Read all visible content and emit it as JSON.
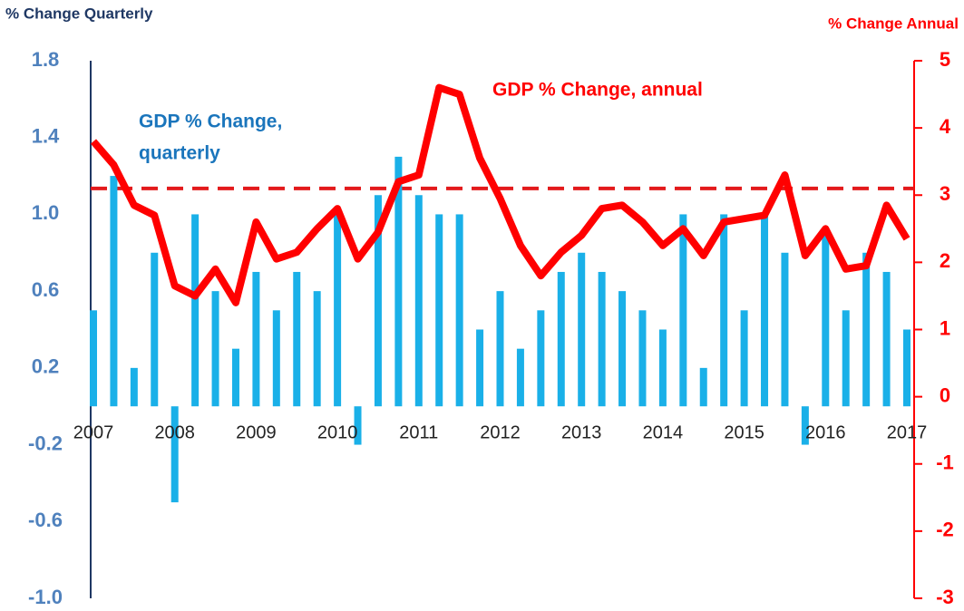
{
  "chart_data": {
    "type": "bar",
    "y_axis_title": "% Change Quarterly",
    "y2_axis_title": "% Change Annual",
    "annotations": [
      {
        "lines": [
          "GDP % Change,",
          "quarterly"
        ],
        "color": "#1a75bc"
      },
      {
        "lines": [
          "GDP % Change, annual"
        ],
        "color": "#ff0000"
      }
    ],
    "xlim": [
      2007,
      2017
    ],
    "xticks": [
      2007,
      2008,
      2009,
      2010,
      2011,
      2012,
      2013,
      2014,
      2015,
      2016,
      2017
    ],
    "ylim": [
      -1.0,
      1.8
    ],
    "yticks": [
      1.8,
      1.4,
      {
        "value": 1.0,
        "label": "1.0"
      },
      0.6,
      0.2,
      -0.2,
      -0.6,
      {
        "value": -1.0,
        "label": "-1.0"
      }
    ],
    "y2lim": [
      -3,
      5
    ],
    "y2ticks": [
      5,
      4,
      3,
      2,
      1,
      0,
      -1,
      -2,
      -3
    ],
    "reference_line": {
      "value": 3.1,
      "axis": "y2",
      "color": "#e31a1c"
    },
    "x": [
      2007,
      2007.25,
      2007.5,
      2007.75,
      2008,
      2008.25,
      2008.5,
      2008.75,
      2009,
      2009.25,
      2009.5,
      2009.75,
      2010,
      2010.25,
      2010.5,
      2010.75,
      2011,
      2011.25,
      2011.5,
      2011.75,
      2012,
      2012.25,
      2012.5,
      2012.75,
      2013,
      2013.25,
      2013.5,
      2013.75,
      2014,
      2014.25,
      2014.5,
      2014.75,
      2015,
      2015.25,
      2015.5,
      2015.75,
      2016,
      2016.25,
      2016.5,
      2016.75,
      2017
    ],
    "series": [
      {
        "type": "bar",
        "color": "#1ab0e8",
        "values": [
          0.5,
          1.2,
          0.2,
          0.8,
          -0.5,
          1.0,
          0.6,
          0.3,
          0.7,
          0.5,
          0.7,
          0.6,
          1.0,
          -0.2,
          1.1,
          1.3,
          1.1,
          1.0,
          1.0,
          0.4,
          0.6,
          0.3,
          0.5,
          0.7,
          0.8,
          0.7,
          0.6,
          0.5,
          0.4,
          1.0,
          0.2,
          1.0,
          0.5,
          1.0,
          0.8,
          -0.2,
          0.9,
          0.5,
          0.8,
          0.7,
          0.4
        ]
      },
      {
        "type": "line",
        "axis": "y2",
        "color": "#ff0000",
        "values": [
          3.8,
          3.45,
          2.85,
          2.7,
          1.65,
          1.5,
          1.9,
          1.4,
          2.6,
          2.05,
          2.15,
          2.5,
          2.8,
          2.05,
          2.45,
          3.2,
          3.3,
          4.6,
          4.5,
          3.55,
          2.95,
          2.25,
          1.8,
          2.15,
          2.4,
          2.8,
          2.85,
          2.6,
          2.25,
          2.5,
          2.1,
          2.6,
          2.65,
          2.7,
          3.3,
          2.1,
          2.5,
          1.9,
          1.95,
          2.85,
          2.35
        ]
      }
    ]
  }
}
